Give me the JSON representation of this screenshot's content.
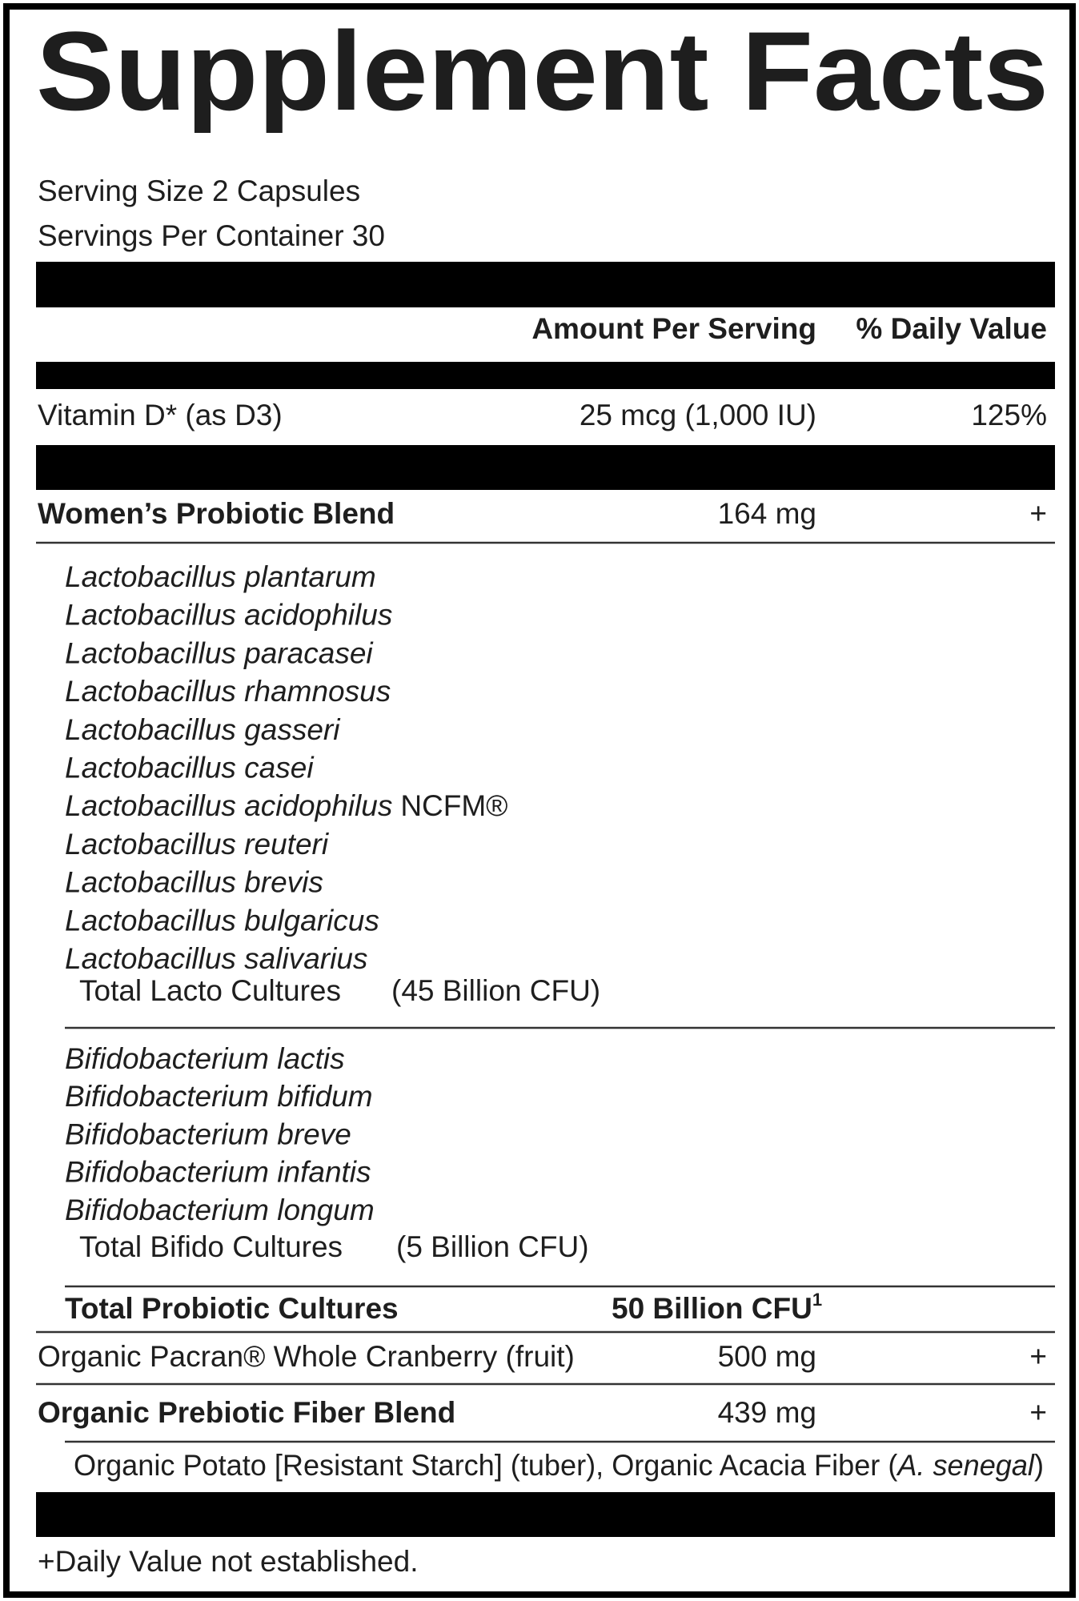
{
  "title": "Supplement Facts",
  "serving_size": "Serving Size 2 Capsules",
  "servings_per_container": "Servings Per Container 30",
  "header": {
    "amount": "Amount Per Serving",
    "daily_value": "% Daily Value"
  },
  "vitamin_d": {
    "name": "Vitamin D* (as D3)",
    "amount": "25 mcg (1,000 IU)",
    "daily_value": "125%"
  },
  "probiotic_blend": {
    "name": "Women’s Probiotic Blend",
    "amount": "164 mg",
    "daily_value": "+"
  },
  "lacto_species": [
    {
      "name": "Lactobacillus plantarum"
    },
    {
      "name": "Lactobacillus acidophilus"
    },
    {
      "name": "Lactobacillus paracasei"
    },
    {
      "name": "Lactobacillus rhamnosus"
    },
    {
      "name": "Lactobacillus gasseri"
    },
    {
      "name": "Lactobacillus casei"
    },
    {
      "name": "Lactobacillus acidophilus",
      "suffix": "NCFM®"
    },
    {
      "name": "Lactobacillus reuteri"
    },
    {
      "name": "Lactobacillus brevis"
    },
    {
      "name": "Lactobacillus bulgaricus"
    },
    {
      "name": "Lactobacillus salivarius"
    }
  ],
  "lacto_total": {
    "label": "Total Lacto Cultures",
    "amount": "(45 Billion CFU)"
  },
  "bifido_species": [
    {
      "name": "Bifidobacterium lactis"
    },
    {
      "name": "Bifidobacterium bifidum"
    },
    {
      "name": "Bifidobacterium breve"
    },
    {
      "name": "Bifidobacterium infantis"
    },
    {
      "name": "Bifidobacterium longum"
    }
  ],
  "bifido_total": {
    "label": "Total Bifido Cultures",
    "amount": "(5 Billion CFU)"
  },
  "total_probiotic": {
    "label": "Total Probiotic Cultures",
    "amount": "50 Billion CFU",
    "footnote_mark": "1"
  },
  "cranberry": {
    "name": "Organic Pacran® Whole Cranberry (fruit)",
    "amount": "500 mg",
    "daily_value": "+"
  },
  "prebiotic_blend": {
    "name": "Organic Prebiotic Fiber Blend",
    "amount": "439 mg",
    "daily_value": "+"
  },
  "prebiotic_ingredients": {
    "text": "Organic Potato [Resistant Starch] (tuber), Organic Acacia Fiber (",
    "italic": "A. senegal",
    "close": ")"
  },
  "footnote": "+Daily Value not established."
}
